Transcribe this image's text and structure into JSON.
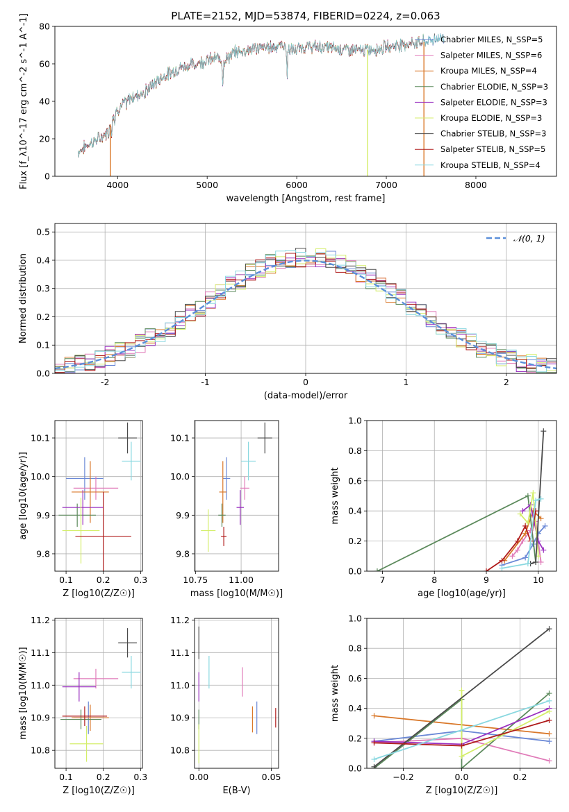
{
  "title": "PLATE=2152, MJD=53874, FIBERID=0224, z=0.063",
  "colors": {
    "chabrier_miles": "#6a88d6",
    "salpeter_miles": "#e07ab8",
    "kroupa_miles": "#d9782a",
    "chabrier_elodie": "#5c8a5c",
    "salpeter_elodie": "#9a30c0",
    "kroupa_elodie": "#d4ee6a",
    "chabrier_stelib": "#4a4a4a",
    "salpeter_stelib": "#b01c1c",
    "kroupa_stelib": "#8ad8e0",
    "normal_curve": "#5b8fd9",
    "grid": "#b0b0b0"
  },
  "chart_data": [
    {
      "id": "spectrum",
      "type": "line",
      "title": "PLATE=2152, MJD=53874, FIBERID=0224, z=0.063",
      "xlabel": "wavelength [Angstrom, rest frame]",
      "ylabel": "Flux [f_λ10^-17 erg cm^-2 s^-1 A^-1]",
      "xlim": [
        3300,
        8900
      ],
      "ylim": [
        0,
        80
      ],
      "xticks": [
        4000,
        5000,
        6000,
        7000,
        8000
      ],
      "yticks": [
        0,
        20,
        40,
        60,
        80
      ],
      "grid": false,
      "legend_position": "top-right",
      "legend": [
        {
          "label": "Chabrier MILES, N_SSP=5",
          "color_key": "chabrier_miles"
        },
        {
          "label": "Salpeter MILES, N_SSP=6",
          "color_key": "salpeter_miles"
        },
        {
          "label": "Kroupa MILES, N_SSP=4",
          "color_key": "kroupa_miles"
        },
        {
          "label": "Chabrier ELODIE, N_SSP=3",
          "color_key": "chabrier_elodie"
        },
        {
          "label": "Salpeter ELODIE, N_SSP=3",
          "color_key": "salpeter_elodie"
        },
        {
          "label": "Kroupa ELODIE, N_SSP=3",
          "color_key": "kroupa_elodie"
        },
        {
          "label": "Chabrier STELIB, N_SSP=3",
          "color_key": "chabrier_stelib"
        },
        {
          "label": "Salpeter STELIB, N_SSP=5",
          "color_key": "salpeter_stelib"
        },
        {
          "label": "Kroupa STELIB, N_SSP=4",
          "color_key": "kroupa_stelib"
        }
      ],
      "continuum_x": [
        3560,
        3700,
        3800,
        3900,
        3950,
        4050,
        4150,
        4250,
        4350,
        4500,
        4700,
        4850,
        5000,
        5100,
        5200,
        5300,
        5500,
        5700,
        5850,
        5950,
        6100,
        6300,
        6500,
        6700,
        6900,
        7100,
        7300,
        7450,
        7600,
        7650
      ],
      "continuum_y": [
        13,
        18,
        20,
        24,
        33,
        38,
        42,
        44,
        47,
        53,
        58,
        60,
        62,
        63,
        62,
        66,
        68,
        69,
        70,
        67,
        69,
        69,
        68,
        67,
        68,
        70,
        71,
        72,
        74,
        74
      ],
      "features": [
        {
          "type": "dip",
          "x": 3934,
          "depth": 7
        },
        {
          "type": "dip",
          "x": 3968,
          "depth": 6
        },
        {
          "type": "dip",
          "x": 4102,
          "depth": 3
        },
        {
          "type": "dip",
          "x": 4305,
          "depth": 5
        },
        {
          "type": "dip",
          "x": 4861,
          "depth": 3
        },
        {
          "type": "dip",
          "x": 5175,
          "depth": 13
        },
        {
          "type": "dip",
          "x": 5270,
          "depth": 2
        },
        {
          "type": "dip",
          "x": 5893,
          "depth": 16
        },
        {
          "type": "spike",
          "x": 3920,
          "y": 0,
          "color_key": "kroupa_miles"
        },
        {
          "type": "spike",
          "x": 6790,
          "y": 0,
          "color_key": "kroupa_elodie"
        },
        {
          "type": "spike",
          "x": 7420,
          "y": 0,
          "color_key": "kroupa_miles"
        }
      ],
      "end_x": {
        "default": 7420,
        "long": 7650,
        "long_series": [
          "chabrier_miles",
          "kroupa_stelib",
          "chabrier_stelib"
        ]
      }
    },
    {
      "id": "residuals",
      "type": "histogram",
      "xlabel": "(data-model)/error",
      "ylabel": "Normed distribution",
      "xlim": [
        -2.5,
        2.5
      ],
      "ylim": [
        0,
        0.53
      ],
      "xticks": [
        -2,
        -1,
        0,
        1,
        2
      ],
      "yticks": [
        0.0,
        0.1,
        0.2,
        0.3,
        0.4,
        0.5
      ],
      "grid": true,
      "legend_position": "top-right",
      "legend": [
        {
          "label": "𝒩(0, 1)",
          "color_key": "normal_curve",
          "style": "dashed"
        }
      ],
      "bin_width": 0.1,
      "bin_start": -2.5,
      "series_keys": [
        "chabrier_miles",
        "salpeter_miles",
        "kroupa_miles",
        "chabrier_elodie",
        "salpeter_elodie",
        "kroupa_elodie",
        "chabrier_stelib",
        "salpeter_stelib",
        "kroupa_stelib"
      ]
    },
    {
      "id": "age_vs_Z",
      "type": "errorbar",
      "xlabel": "Z [log10(Z/Z☉)]",
      "ylabel": "age [log10(age/yr)]",
      "xlim": [
        0.07,
        0.305
      ],
      "ylim": [
        9.755,
        10.145
      ],
      "xticks": [
        0.1,
        0.2,
        0.3
      ],
      "xticklabels": [
        "0.1",
        "0.2",
        "0.3"
      ],
      "yticks": [
        9.8,
        9.9,
        10.0,
        10.1
      ],
      "yticklabels": [
        "9.8",
        "9.9",
        "10.0",
        "10.1"
      ],
      "grid": true,
      "points": [
        {
          "s": "chabrier_miles",
          "x": 0.15,
          "xerr": 0.05,
          "y": 9.995,
          "yerr": 0.055
        },
        {
          "s": "salpeter_miles",
          "x": 0.18,
          "xerr": 0.06,
          "y": 9.97,
          "yerr": 0.03
        },
        {
          "s": "kroupa_miles",
          "x": 0.165,
          "xerr": 0.05,
          "y": 9.96,
          "yerr": 0.08
        },
        {
          "s": "chabrier_elodie",
          "x": 0.13,
          "xerr": 0.05,
          "y": 9.9,
          "yerr": 0.03
        },
        {
          "s": "salpeter_elodie",
          "x": 0.145,
          "xerr": 0.055,
          "y": 9.92,
          "yerr": 0.045
        },
        {
          "s": "kroupa_elodie",
          "x": 0.14,
          "xerr": 0.05,
          "y": 9.86,
          "yerr": 0.085
        },
        {
          "s": "chabrier_stelib",
          "x": 0.265,
          "xerr": 0.025,
          "y": 10.1,
          "yerr": 0.04
        },
        {
          "s": "salpeter_stelib",
          "x": 0.2,
          "xerr": 0.075,
          "y": 9.845,
          "yerr": 0.115
        },
        {
          "s": "kroupa_stelib",
          "x": 0.275,
          "xerr": 0.025,
          "y": 10.04,
          "yerr": 0.05
        }
      ]
    },
    {
      "id": "age_vs_mass",
      "type": "errorbar",
      "xlabel": "mass [log10(M/M☉)]",
      "ylabel": "",
      "xlim": [
        10.745,
        11.205
      ],
      "ylim": [
        9.755,
        10.145
      ],
      "xticks": [
        10.75,
        11.0
      ],
      "xticklabels": [
        "10.75",
        "11.00"
      ],
      "yticks": [
        9.8,
        9.9,
        10.0,
        10.1
      ],
      "yticklabels": [
        "9.8",
        "9.9",
        "10.0",
        "10.1"
      ],
      "grid": true,
      "points": [
        {
          "s": "chabrier_miles",
          "x": 10.92,
          "xerr": 0.02,
          "y": 9.995,
          "yerr": 0.055
        },
        {
          "s": "salpeter_miles",
          "x": 11.02,
          "xerr": 0.025,
          "y": 9.97,
          "yerr": 0.03
        },
        {
          "s": "kroupa_miles",
          "x": 10.9,
          "xerr": 0.02,
          "y": 9.96,
          "yerr": 0.08
        },
        {
          "s": "chabrier_elodie",
          "x": 10.895,
          "xerr": 0.02,
          "y": 9.9,
          "yerr": 0.03
        },
        {
          "s": "salpeter_elodie",
          "x": 10.995,
          "xerr": 0.02,
          "y": 9.92,
          "yerr": 0.045
        },
        {
          "s": "kroupa_elodie",
          "x": 10.82,
          "xerr": 0.04,
          "y": 9.86,
          "yerr": 0.055
        },
        {
          "s": "chabrier_stelib",
          "x": 11.13,
          "xerr": 0.04,
          "y": 10.1,
          "yerr": 0.04
        },
        {
          "s": "salpeter_stelib",
          "x": 10.905,
          "xerr": 0.015,
          "y": 9.845,
          "yerr": 0.025
        },
        {
          "s": "kroupa_stelib",
          "x": 11.04,
          "xerr": 0.04,
          "y": 10.04,
          "yerr": 0.05
        }
      ]
    },
    {
      "id": "weight_vs_age",
      "type": "line",
      "xlabel": "age [log10(age/yr)]",
      "ylabel": "mass weight",
      "xlim": [
        6.7,
        10.35
      ],
      "ylim": [
        0,
        1.0
      ],
      "xticks": [
        7,
        8,
        9,
        10
      ],
      "xticklabels": [
        "7",
        "8",
        "9",
        "10"
      ],
      "yticks": [
        0.0,
        0.2,
        0.4,
        0.6,
        0.8,
        1.0
      ],
      "yticklabels": [
        "0.0",
        "0.2",
        "0.4",
        "0.6",
        "0.8",
        "1.0"
      ],
      "grid": true,
      "series": [
        {
          "s": "chabrier_miles",
          "x": [
            9.3,
            9.75,
            9.9,
            10.0,
            10.13
          ],
          "y": [
            0.04,
            0.09,
            0.18,
            0.25,
            0.3
          ]
        },
        {
          "s": "salpeter_miles",
          "x": [
            9.5,
            9.6,
            9.7,
            9.85,
            9.95,
            10.05
          ],
          "y": [
            0.1,
            0.14,
            0.2,
            0.27,
            0.33,
            0.06
          ]
        },
        {
          "s": "kroupa_miles",
          "x": [
            9.35,
            9.75,
            9.9,
            10.05
          ],
          "y": [
            0.07,
            0.25,
            0.4,
            0.35
          ]
        },
        {
          "s": "chabrier_elodie",
          "x": [
            6.9,
            9.8,
            9.95
          ],
          "y": [
            0.0,
            0.5,
            0.06
          ]
        },
        {
          "s": "salpeter_elodie",
          "x": [
            9.7,
            9.85,
            10.0,
            10.1
          ],
          "y": [
            0.4,
            0.44,
            0.2,
            0.14
          ]
        },
        {
          "s": "kroupa_elodie",
          "x": [
            9.65,
            9.8,
            9.9,
            10.0
          ],
          "y": [
            0.38,
            0.32,
            0.52,
            0.1
          ]
        },
        {
          "s": "chabrier_stelib",
          "x": [
            9.85,
            9.95,
            10.1
          ],
          "y": [
            0.05,
            0.06,
            0.93
          ]
        },
        {
          "s": "salpeter_stelib",
          "x": [
            9.0,
            9.3,
            9.6,
            9.75,
            9.85,
            9.95
          ],
          "y": [
            0.0,
            0.07,
            0.2,
            0.3,
            0.2,
            0.4
          ]
        },
        {
          "s": "kroupa_stelib",
          "x": [
            9.3,
            9.8,
            9.95,
            10.05
          ],
          "y": [
            0.02,
            0.05,
            0.47,
            0.48
          ]
        }
      ]
    },
    {
      "id": "mass_vs_Z",
      "type": "errorbar",
      "xlabel": "Z [log10(Z/Z☉)]",
      "ylabel": "mass [log10(M/M☉)]",
      "xlim": [
        0.07,
        0.305
      ],
      "ylim": [
        10.745,
        11.205
      ],
      "xticks": [
        0.1,
        0.2,
        0.3
      ],
      "xticklabels": [
        "0.1",
        "0.2",
        "0.3"
      ],
      "yticks": [
        10.8,
        10.9,
        11.0,
        11.1,
        11.2
      ],
      "yticklabels": [
        "10.8",
        "10.9",
        "11.0",
        "11.1",
        "11.2"
      ],
      "grid": true,
      "points": [
        {
          "s": "chabrier_miles",
          "x": 0.16,
          "xerr": 0.04,
          "y": 10.9,
          "yerr": 0.05
        },
        {
          "s": "salpeter_miles",
          "x": 0.18,
          "xerr": 0.06,
          "y": 11.02,
          "yerr": 0.03
        },
        {
          "s": "kroupa_miles",
          "x": 0.165,
          "xerr": 0.05,
          "y": 10.9,
          "yerr": 0.04
        },
        {
          "s": "chabrier_elodie",
          "x": 0.14,
          "xerr": 0.055,
          "y": 10.895,
          "yerr": 0.03
        },
        {
          "s": "salpeter_elodie",
          "x": 0.135,
          "xerr": 0.045,
          "y": 10.995,
          "yerr": 0.045
        },
        {
          "s": "kroupa_elodie",
          "x": 0.155,
          "xerr": 0.045,
          "y": 10.82,
          "yerr": 0.055
        },
        {
          "s": "chabrier_stelib",
          "x": 0.265,
          "xerr": 0.025,
          "y": 11.13,
          "yerr": 0.045
        },
        {
          "s": "salpeter_stelib",
          "x": 0.15,
          "xerr": 0.06,
          "y": 10.905,
          "yerr": 0.03
        },
        {
          "s": "kroupa_stelib",
          "x": 0.275,
          "xerr": 0.025,
          "y": 11.04,
          "yerr": 0.05
        }
      ]
    },
    {
      "id": "mass_vs_ebv",
      "type": "errorbar",
      "xlabel": "E(B-V)",
      "ylabel": "",
      "xlim": [
        -0.003,
        0.055
      ],
      "ylim": [
        10.745,
        11.205
      ],
      "xticks": [
        0.0,
        0.05
      ],
      "xticklabels": [
        "0.00",
        "0.05"
      ],
      "yticks": [
        10.8,
        10.9,
        11.0,
        11.1,
        11.2
      ],
      "yticklabels": [
        "10.8",
        "10.9",
        "11.0",
        "11.1",
        "11.2"
      ],
      "grid": true,
      "points": [
        {
          "s": "chabrier_miles",
          "x": 0.04,
          "xerr": 0,
          "y": 10.9,
          "yerr": 0.05
        },
        {
          "s": "salpeter_miles",
          "x": 0.03,
          "xerr": 0,
          "y": 11.01,
          "yerr": 0.045
        },
        {
          "s": "kroupa_miles",
          "x": 0.037,
          "xerr": 0,
          "y": 10.895,
          "yerr": 0.04
        },
        {
          "s": "chabrier_elodie",
          "x": 0.0,
          "xerr": 0,
          "y": 10.895,
          "yerr": 0.03
        },
        {
          "s": "salpeter_elodie",
          "x": 0.0,
          "xerr": 0,
          "y": 10.995,
          "yerr": 0.045
        },
        {
          "s": "kroupa_elodie",
          "x": 0.0,
          "xerr": 0,
          "y": 10.82,
          "yerr": 0.06
        },
        {
          "s": "chabrier_stelib",
          "x": 0.0,
          "xerr": 0,
          "y": 11.13,
          "yerr": 0.05
        },
        {
          "s": "salpeter_stelib",
          "x": 0.053,
          "xerr": 0,
          "y": 10.9,
          "yerr": 0.03
        },
        {
          "s": "kroupa_stelib",
          "x": 0.007,
          "xerr": 0,
          "y": 11.04,
          "yerr": 0.05
        }
      ]
    },
    {
      "id": "weight_vs_Z",
      "type": "line",
      "xlabel": "Z [log10(Z/Z☉)]",
      "ylabel": "mass weight",
      "xlim": [
        -0.325,
        0.325
      ],
      "ylim": [
        0,
        1.0
      ],
      "xticks": [
        -0.2,
        0.0,
        0.2
      ],
      "xticklabels": [
        "−0.2",
        "0.0",
        "0.2"
      ],
      "yticks": [
        0.0,
        0.2,
        0.4,
        0.6,
        0.8,
        1.0
      ],
      "yticklabels": [
        "0.0",
        "0.2",
        "0.4",
        "0.6",
        "0.8",
        "1.0"
      ],
      "grid": true,
      "series": [
        {
          "s": "chabrier_miles",
          "x": [
            -0.3,
            0.0,
            0.3
          ],
          "y": [
            0.18,
            0.25,
            0.18
          ]
        },
        {
          "s": "salpeter_miles",
          "x": [
            -0.3,
            0.0,
            0.3
          ],
          "y": [
            0.17,
            0.2,
            0.05
          ]
        },
        {
          "s": "kroupa_miles",
          "x": [
            -0.3,
            0.0,
            0.3
          ],
          "y": [
            0.35,
            0.29,
            0.23
          ]
        },
        {
          "s": "chabrier_elodie",
          "x": [
            -0.3,
            0.0,
            0.0,
            0.3
          ],
          "y": [
            0.0,
            0.46,
            0.0,
            0.5
          ]
        },
        {
          "s": "salpeter_elodie",
          "x": [
            -0.3,
            0.0,
            0.3
          ],
          "y": [
            0.18,
            0.16,
            0.4
          ]
        },
        {
          "s": "kroupa_elodie",
          "x": [
            0.0,
            0.0,
            0.3
          ],
          "y": [
            0.52,
            0.08,
            0.38
          ]
        },
        {
          "s": "chabrier_stelib",
          "x": [
            -0.3,
            0.3
          ],
          "y": [
            0.01,
            0.93
          ]
        },
        {
          "s": "salpeter_stelib",
          "x": [
            -0.3,
            0.0,
            0.3
          ],
          "y": [
            0.17,
            0.15,
            0.32
          ]
        },
        {
          "s": "kroupa_stelib",
          "x": [
            -0.3,
            0.3
          ],
          "y": [
            0.06,
            0.45
          ]
        }
      ]
    }
  ]
}
